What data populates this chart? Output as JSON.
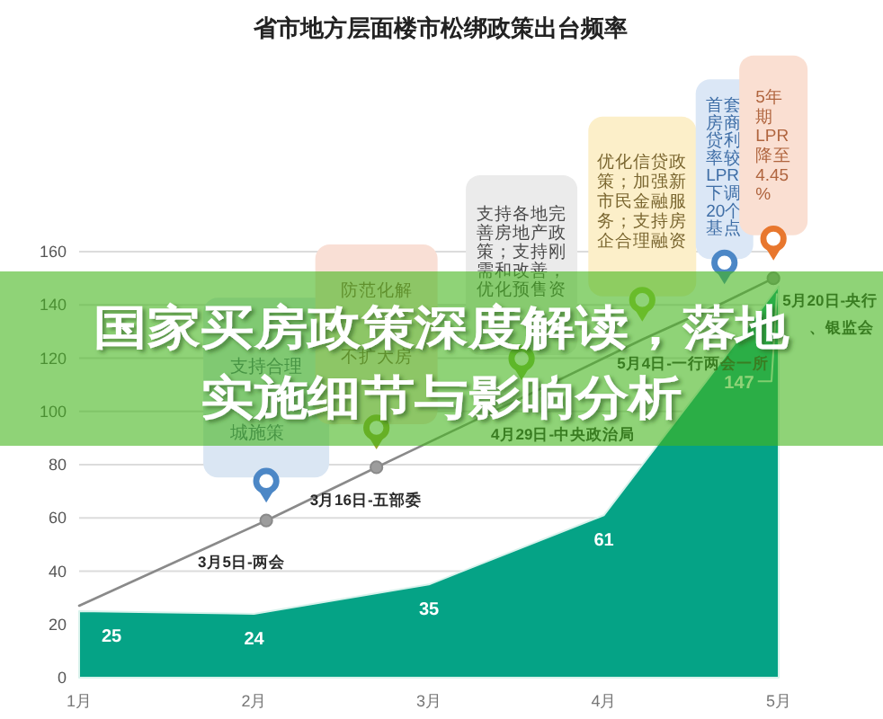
{
  "chart_data": {
    "type": "area",
    "title": "省市地方层面楼市松绑政策出台频率",
    "x": [
      1,
      2,
      3,
      4,
      5
    ],
    "xlim": [
      1,
      5
    ],
    "xticks": [
      {
        "value": 1,
        "label": "1月"
      },
      {
        "value": 2,
        "label": "2月"
      },
      {
        "value": 3,
        "label": "3月"
      },
      {
        "value": 4,
        "label": "4月"
      },
      {
        "value": 5,
        "label": "5月"
      }
    ],
    "ylim": [
      0,
      160
    ],
    "yticks": [
      0,
      20,
      40,
      60,
      80,
      100,
      120,
      140,
      160
    ],
    "grid": "y",
    "series": [
      {
        "color": "#05a386",
        "values": [
          25,
          24,
          35,
          61,
          147
        ],
        "value_labels": [
          "25",
          "24",
          "35",
          "61",
          "147"
        ]
      },
      {
        "type": "line",
        "color": "#8a8a8a",
        "x": [
          1,
          2.07,
          2.7,
          3.53,
          4.22,
          4.69,
          4.97
        ],
        "values": [
          27,
          59,
          79,
          105,
          127,
          141,
          150
        ]
      },
      {
        "type": "scatter",
        "color": "#8a8a8a",
        "marker": "circle",
        "x": [
          2.07,
          2.7,
          4.97
        ],
        "values": [
          59,
          79,
          150
        ]
      }
    ],
    "annotations": [
      {
        "text": "3月5日-两会",
        "x": 2.07,
        "y": 59
      },
      {
        "text": "3月16日-五部委",
        "x": 2.7,
        "y": 79
      },
      {
        "text": "4月29日-中央政治局",
        "x": 3.53,
        "y": 105
      },
      {
        "text": "5月4日-一行两会一所",
        "x": 4.22,
        "y": 127
      },
      {
        "text": "5月20日-央行",
        "x": 4.97,
        "y": 150
      },
      "支持合理城施策",
      "防范化解不扩大房",
      "支持各地完善房地产政策；支持刚需和改善，优化预售资",
      "优化信贷政策；加强新市民金融服务；支持房企合理融资",
      "首套房商贷利率较LPR下调20个基点",
      "5年期LPR降至4.45%",
      "国家买房政策深度解读，落地",
      "实施细节与影响分析",
      "、银监会"
    ]
  }
}
